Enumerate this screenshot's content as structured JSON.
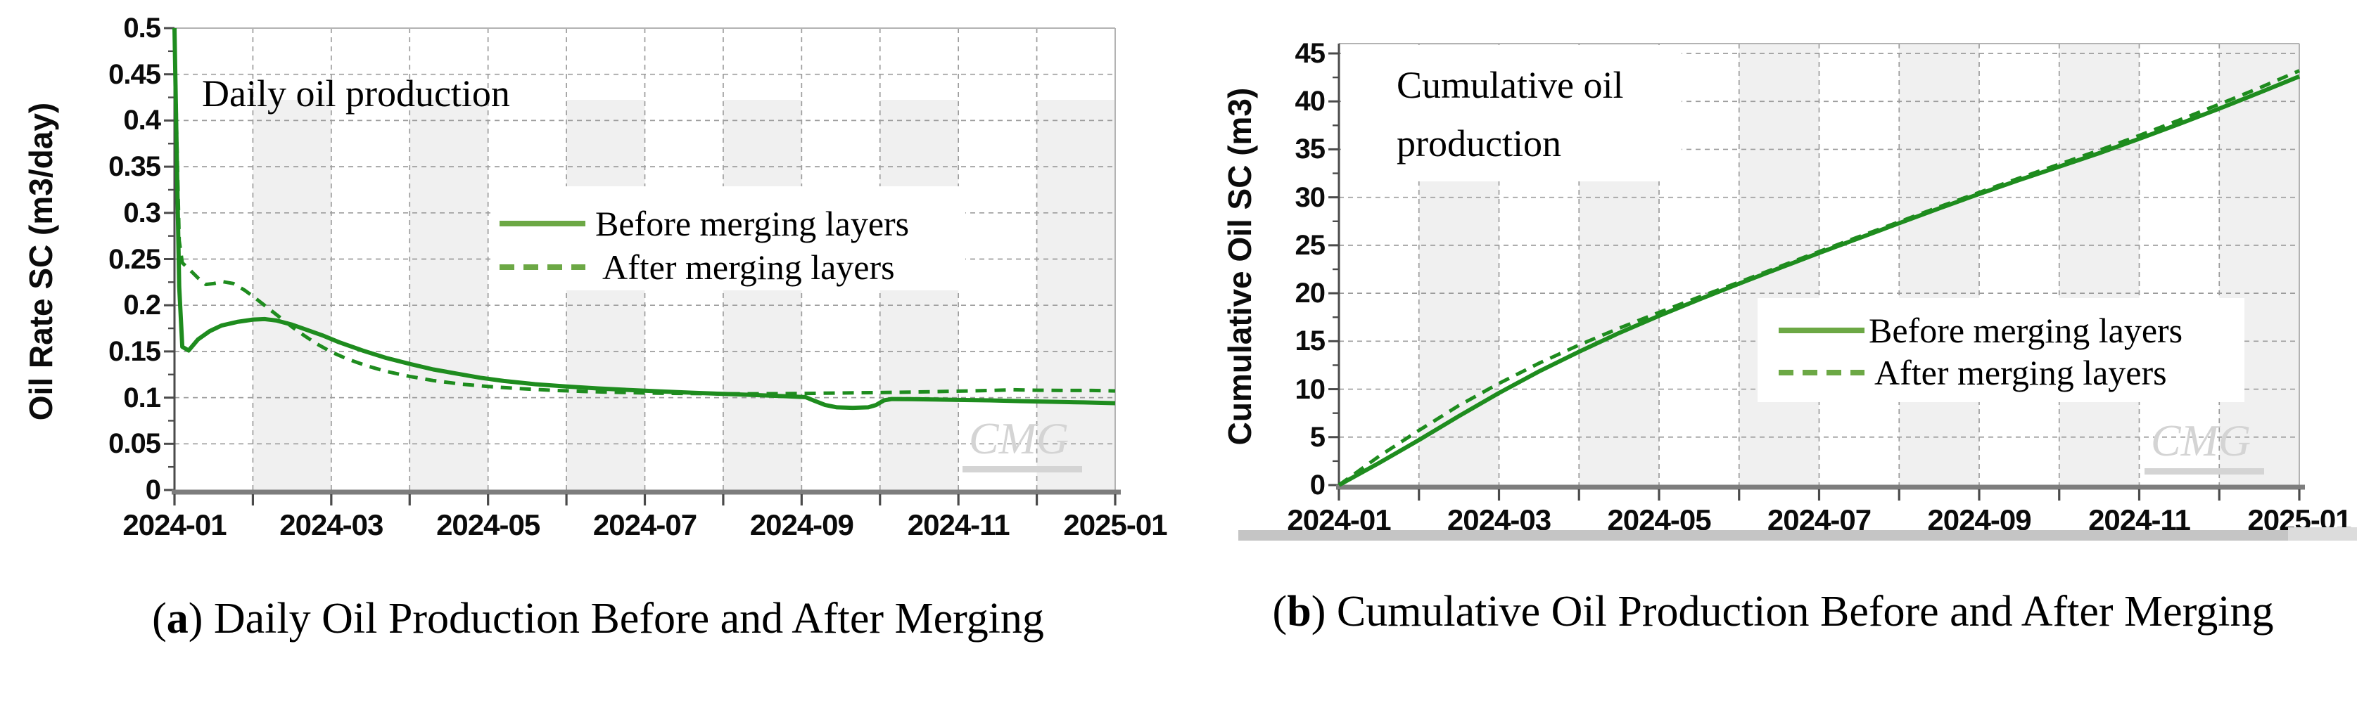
{
  "colors": {
    "curve_green": "#1e8c1e",
    "legend_swatch_green": "#6ca845",
    "band_gray": "#f0f0f0",
    "grid_gray": "#9c9c9c",
    "bottom_axis_gray": "#7d7d7d",
    "y_axis_dark": "#4a4a4a",
    "border_gray": "#b3b3b3",
    "watermark_gray": "#d4d4d4",
    "scrollbar_track": "#c5c5c5",
    "scrollbar_thumb": "#dcdcdc"
  },
  "captions": {
    "a": {
      "open": "(",
      "letter": "a",
      "close": ") ",
      "text": "Daily Oil Production Before and After Merging"
    },
    "b": {
      "open": "(",
      "letter": "b",
      "close": ") ",
      "text": "Cumulative Oil Production Before and After Merging"
    }
  },
  "chart_data": [
    {
      "id": "daily",
      "type": "line",
      "title_lines": [
        "Daily oil production"
      ],
      "ylabel": "Oil Rate SC (m3/day)",
      "xlabel": "",
      "ylim": [
        0,
        0.5
      ],
      "x_range_months": [
        "2024-01",
        "2025-01"
      ],
      "x_tick_labels": [
        "2024-01",
        "2024-03",
        "2024-05",
        "2024-07",
        "2024-09",
        "2024-11",
        "2025-01"
      ],
      "y_ticks": [
        {
          "v": 0,
          "t": "0",
          "g": 0
        },
        {
          "v": 0.05,
          "t": "0.05",
          "g": 1
        },
        {
          "v": 0.1,
          "t": "0.1",
          "g": 1
        },
        {
          "v": 0.15,
          "t": "0.15",
          "g": 1
        },
        {
          "v": 0.2,
          "t": "0.2",
          "g": 1
        },
        {
          "v": 0.25,
          "t": "0.25",
          "g": 1
        },
        {
          "v": 0.3,
          "t": "0.3",
          "g": 1
        },
        {
          "v": 0.35,
          "t": "0.35",
          "g": 1
        },
        {
          "v": 0.4,
          "t": "0.4",
          "g": 1
        },
        {
          "v": 0.45,
          "t": "0.45",
          "g": 1
        },
        {
          "v": 0.5,
          "t": "0.5",
          "g": 0
        }
      ],
      "gray_band_months": [
        1,
        3,
        5,
        7,
        9,
        11
      ],
      "legend": [
        {
          "label": "Before merging layers",
          "dash": false
        },
        {
          "label": "After merging layers",
          "dash": true
        }
      ],
      "watermark": "CMG",
      "series": [
        {
          "name": "Before merging layers",
          "dash": false,
          "points": [
            [
              0,
              0.5
            ],
            [
              0.03,
              0.36
            ],
            [
              0.06,
              0.22
            ],
            [
              0.1,
              0.155
            ],
            [
              0.18,
              0.151
            ],
            [
              0.3,
              0.163
            ],
            [
              0.45,
              0.172
            ],
            [
              0.6,
              0.178
            ],
            [
              0.8,
              0.182
            ],
            [
              1.0,
              0.1845
            ],
            [
              1.15,
              0.185
            ],
            [
              1.3,
              0.1835
            ],
            [
              1.5,
              0.179
            ],
            [
              1.7,
              0.173
            ],
            [
              1.9,
              0.167
            ],
            [
              2.1,
              0.16
            ],
            [
              2.4,
              0.151
            ],
            [
              2.7,
              0.143
            ],
            [
              3.0,
              0.1365
            ],
            [
              3.3,
              0.1305
            ],
            [
              3.6,
              0.126
            ],
            [
              3.9,
              0.1215
            ],
            [
              4.2,
              0.118
            ],
            [
              4.6,
              0.1145
            ],
            [
              5.0,
              0.112
            ],
            [
              5.4,
              0.11
            ],
            [
              5.8,
              0.1083
            ],
            [
              6.2,
              0.1068
            ],
            [
              6.6,
              0.1053
            ],
            [
              7.0,
              0.104
            ],
            [
              7.4,
              0.1028
            ],
            [
              7.8,
              0.1015
            ],
            [
              8.05,
              0.1005
            ],
            [
              8.15,
              0.097
            ],
            [
              8.3,
              0.092
            ],
            [
              8.45,
              0.0895
            ],
            [
              8.65,
              0.089
            ],
            [
              8.85,
              0.0895
            ],
            [
              8.95,
              0.092
            ],
            [
              9.05,
              0.097
            ],
            [
              9.15,
              0.0985
            ],
            [
              9.4,
              0.0983
            ],
            [
              9.7,
              0.098
            ],
            [
              10.0,
              0.0975
            ],
            [
              10.4,
              0.097
            ],
            [
              10.8,
              0.0962
            ],
            [
              11.2,
              0.0955
            ],
            [
              11.6,
              0.0948
            ],
            [
              12.0,
              0.094
            ]
          ]
        },
        {
          "name": "After merging layers",
          "dash": true,
          "points": [
            [
              0,
              0.5
            ],
            [
              0.03,
              0.38
            ],
            [
              0.06,
              0.27
            ],
            [
              0.1,
              0.246
            ],
            [
              0.2,
              0.238
            ],
            [
              0.3,
              0.2295
            ],
            [
              0.4,
              0.2225
            ],
            [
              0.5,
              0.2235
            ],
            [
              0.62,
              0.2255
            ],
            [
              0.75,
              0.2235
            ],
            [
              0.9,
              0.216
            ],
            [
              1.05,
              0.2065
            ],
            [
              1.2,
              0.1965
            ],
            [
              1.35,
              0.1865
            ],
            [
              1.5,
              0.1765
            ],
            [
              1.65,
              0.1675
            ],
            [
              1.8,
              0.159
            ],
            [
              2.0,
              0.1495
            ],
            [
              2.2,
              0.142
            ],
            [
              2.45,
              0.1345
            ],
            [
              2.7,
              0.1285
            ],
            [
              3.0,
              0.123
            ],
            [
              3.3,
              0.1185
            ],
            [
              3.65,
              0.1147
            ],
            [
              4.0,
              0.112
            ],
            [
              4.4,
              0.1098
            ],
            [
              4.8,
              0.108
            ],
            [
              5.2,
              0.1068
            ],
            [
              5.6,
              0.1058
            ],
            [
              6.0,
              0.105
            ],
            [
              6.5,
              0.1045
            ],
            [
              7.0,
              0.1042
            ],
            [
              7.5,
              0.1042
            ],
            [
              8.0,
              0.1045
            ],
            [
              8.5,
              0.105
            ],
            [
              9.0,
              0.1055
            ],
            [
              9.5,
              0.1062
            ],
            [
              10.0,
              0.107
            ],
            [
              10.4,
              0.1078
            ],
            [
              10.7,
              0.1085
            ],
            [
              11.0,
              0.108
            ],
            [
              11.4,
              0.1078
            ],
            [
              11.7,
              0.1078
            ],
            [
              12.0,
              0.1072
            ]
          ]
        }
      ]
    },
    {
      "id": "cumulative",
      "type": "line",
      "title_lines": [
        "Cumulative oil",
        "production"
      ],
      "ylabel": "Cumulative Oil SC (m3)",
      "xlabel": "",
      "ylim": [
        0,
        45
      ],
      "x_range_months": [
        "2024-01",
        "2025-01"
      ],
      "x_tick_labels": [
        "2024-01",
        "2024-03",
        "2024-05",
        "2024-07",
        "2024-09",
        "2024-11",
        "2025-01"
      ],
      "y_ticks": [
        {
          "v": 0,
          "t": "0",
          "g": 0
        },
        {
          "v": 5,
          "t": "5",
          "g": 1
        },
        {
          "v": 10,
          "t": "10",
          "g": 1
        },
        {
          "v": 15,
          "t": "15",
          "g": 1
        },
        {
          "v": 20,
          "t": "20",
          "g": 1
        },
        {
          "v": 25,
          "t": "25",
          "g": 1
        },
        {
          "v": 30,
          "t": "30",
          "g": 1
        },
        {
          "v": 35,
          "t": "35",
          "g": 1
        },
        {
          "v": 40,
          "t": "40",
          "g": 1
        },
        {
          "v": 45,
          "t": "45",
          "g": 1
        }
      ],
      "gray_band_months": [
        1,
        3,
        5,
        7,
        9,
        11
      ],
      "legend": [
        {
          "label": "Before merging layers",
          "dash": false
        },
        {
          "label": "After merging layers",
          "dash": true
        }
      ],
      "watermark": "CMG",
      "series": [
        {
          "name": "Before merging layers",
          "dash": false,
          "points": [
            [
              0,
              0
            ],
            [
              0.5,
              2.3
            ],
            [
              1,
              4.7
            ],
            [
              1.5,
              7.2
            ],
            [
              2,
              9.6
            ],
            [
              2.5,
              11.85
            ],
            [
              3,
              13.9
            ],
            [
              3.5,
              15.85
            ],
            [
              4,
              17.65
            ],
            [
              4.5,
              19.35
            ],
            [
              5,
              21.0
            ],
            [
              5.5,
              22.6
            ],
            [
              6,
              24.2
            ],
            [
              6.5,
              25.75
            ],
            [
              7,
              27.3
            ],
            [
              7.5,
              28.85
            ],
            [
              8,
              30.35
            ],
            [
              8.5,
              31.8
            ],
            [
              9,
              33.2
            ],
            [
              9.5,
              34.6
            ],
            [
              10,
              36.1
            ],
            [
              10.5,
              37.65
            ],
            [
              11,
              39.25
            ],
            [
              11.5,
              40.9
            ],
            [
              12,
              42.6
            ]
          ]
        },
        {
          "name": "After merging layers",
          "dash": true,
          "points": [
            [
              0,
              0
            ],
            [
              0.5,
              3.0
            ],
            [
              1,
              5.7
            ],
            [
              1.5,
              8.3
            ],
            [
              2,
              10.6
            ],
            [
              2.5,
              12.7
            ],
            [
              3,
              14.6
            ],
            [
              3.5,
              16.35
            ],
            [
              4,
              18.0
            ],
            [
              4.5,
              19.6
            ],
            [
              5,
              21.15
            ],
            [
              5.5,
              22.75
            ],
            [
              6,
              24.35
            ],
            [
              6.5,
              25.9
            ],
            [
              7,
              27.45
            ],
            [
              7.5,
              29.0
            ],
            [
              8,
              30.5
            ],
            [
              8.5,
              32.0
            ],
            [
              9,
              33.45
            ],
            [
              9.5,
              34.9
            ],
            [
              10,
              36.45
            ],
            [
              10.5,
              38.05
            ],
            [
              11,
              39.7
            ],
            [
              11.5,
              41.4
            ],
            [
              12,
              43.2
            ]
          ]
        }
      ]
    }
  ]
}
